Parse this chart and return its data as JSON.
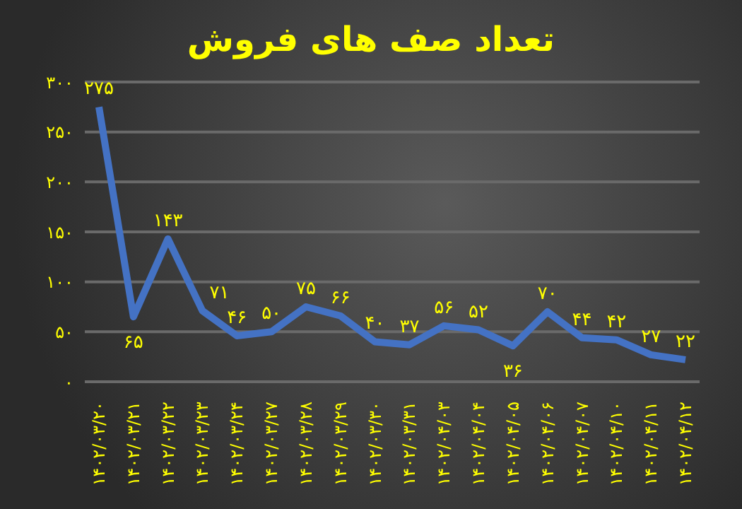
{
  "chart_data": {
    "type": "line",
    "title": "تعداد صف های فروش",
    "categories": [
      "۱۴۰۲/۰۳/۲۰",
      "۱۴۰۲/۰۳/۲۱",
      "۱۴۰۲/۰۳/۲۲",
      "۱۴۰۲/۰۳/۲۳",
      "۱۴۰۲/۰۳/۲۴",
      "۱۴۰۲/۰۳/۲۷",
      "۱۴۰۲/۰۳/۲۸",
      "۱۴۰۲/۰۳/۲۹",
      "۱۴۰۲/۰۳/۳۰",
      "۱۴۰۲/۰۳/۳۱",
      "۱۴۰۲/۰۴/۰۳",
      "۱۴۰۲/۰۴/۰۴",
      "۱۴۰۲/۰۴/۰۵",
      "۱۴۰۲/۰۴/۰۶",
      "۱۴۰۲/۰۴/۰۷",
      "۱۴۰۲/۰۴/۱۰",
      "۱۴۰۲/۰۴/۱۱",
      "۱۴۰۲/۰۴/۱۲"
    ],
    "series": [
      {
        "color": "#4472c4",
        "values": [
          275,
          65,
          143,
          71,
          46,
          50,
          75,
          66,
          40,
          37,
          56,
          52,
          36,
          70,
          44,
          42,
          27,
          22
        ],
        "value_labels": [
          "۲۷۵",
          "۶۵",
          "۱۴۳",
          "۷۱",
          "۴۶",
          "۵۰",
          "۷۵",
          "۶۶",
          "۴۰",
          "۳۷",
          "۵۶",
          "۵۲",
          "۳۶",
          "۷۰",
          "۴۴",
          "۴۲",
          "۲۷",
          "۲۲"
        ]
      }
    ],
    "ylim": [
      0,
      300
    ],
    "yticks": [
      {
        "value": 0,
        "label": "۰"
      },
      {
        "value": 50,
        "label": "۵۰"
      },
      {
        "value": 100,
        "label": "۱۰۰"
      },
      {
        "value": 150,
        "label": "۱۵۰"
      },
      {
        "value": 200,
        "label": "۲۰۰"
      },
      {
        "value": 250,
        "label": "۲۵۰"
      },
      {
        "value": 300,
        "label": "۳۰۰"
      }
    ],
    "grid": "y",
    "marker": "none",
    "line_style": "solid",
    "legend": false
  }
}
